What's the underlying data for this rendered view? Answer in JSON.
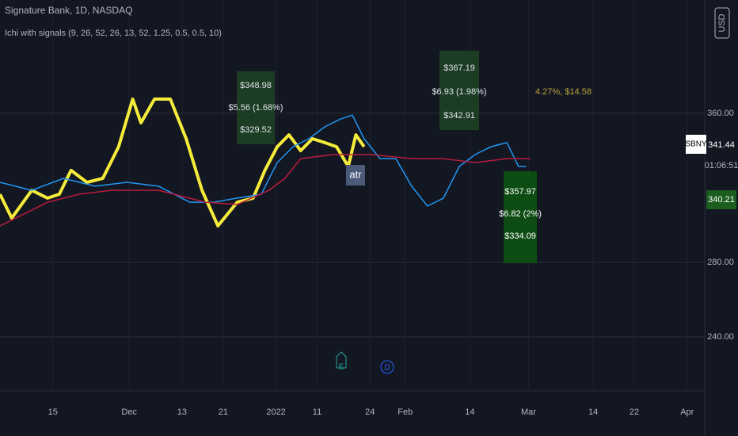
{
  "header": {
    "title": "Signature Bank, 1D, NASDAQ",
    "indicator": "Ichi with signals (9, 26, 52, 26, 13, 52, 1.25, 0.5, 0.5, 10)",
    "currency": "USD"
  },
  "annotations": [
    [
      "$348.98",
      "$5.56 (1.68%)",
      "$329.52"
    ],
    [
      "$367.19",
      "$6.93 (1.98%)",
      "$342.91"
    ],
    [
      "$357.97",
      "$6.82 (2%)",
      "$334.09"
    ],
    "4.27%, $14.58",
    "atr"
  ],
  "events": [
    "E",
    "D"
  ],
  "price_labels": {
    "symbol": "SBNY",
    "last": "341.44",
    "countdown": "01:06:51",
    "level": "340.21"
  },
  "chart_data": {
    "type": "line",
    "xlim": [
      0,
      120
    ],
    "xticks": [
      {
        "value": 9,
        "label": "15"
      },
      {
        "value": 22,
        "label": "Dec"
      },
      {
        "value": 31,
        "label": "13"
      },
      {
        "value": 38,
        "label": "21"
      },
      {
        "value": 47,
        "label": "2022"
      },
      {
        "value": 54,
        "label": "11"
      },
      {
        "value": 63,
        "label": "24"
      },
      {
        "value": 69,
        "label": "Feb"
      },
      {
        "value": 80,
        "label": "14"
      },
      {
        "value": 90,
        "label": "Mar"
      },
      {
        "value": 101,
        "label": "14"
      },
      {
        "value": 108,
        "label": "22"
      },
      {
        "value": 117,
        "label": "Apr"
      }
    ],
    "ylim": [
      212.3,
      420.9
    ],
    "yticks": [
      {
        "value": 240,
        "label": "240.00"
      },
      {
        "value": 280,
        "label": "280.00"
      },
      {
        "value": 360,
        "label": "360.00"
      }
    ],
    "grid": true,
    "series": [
      {
        "color": "#f5eb3b",
        "width": 4,
        "x": [
          0,
          2,
          5.4,
          8.1,
          10.1,
          12.1,
          14.8,
          17.5,
          20.2,
          22.6,
          24,
          26.3,
          29,
          31.7,
          34.4,
          37.1,
          40.4,
          43.1,
          45.1,
          47.2,
          49.2,
          51.2,
          53.2,
          55.3,
          57.3,
          59.3,
          60.6,
          62
        ],
        "values": [
          316.6,
          303.8,
          318.7,
          314.5,
          316.6,
          329.4,
          323,
          325.1,
          342.1,
          367.7,
          354.9,
          367.7,
          367.7,
          346.4,
          318.7,
          299.6,
          312.3,
          314.5,
          329.4,
          342.1,
          348.5,
          340,
          346.4,
          344.3,
          342.1,
          331.5,
          348.5,
          342.1
        ]
      },
      {
        "color": "#2196f3",
        "width": 1.5,
        "x": [
          0,
          5.4,
          10.8,
          16.2,
          21.6,
          27,
          32.3,
          36.4,
          40.4,
          44.5,
          47.2,
          49.9,
          52.6,
          55.3,
          58,
          60,
          62,
          64.7,
          67.4,
          70.1,
          72.8,
          75.5,
          78.2,
          80.9,
          83.6,
          86.3,
          88.3,
          89.6
        ],
        "values": [
          323,
          318.7,
          325.1,
          320.9,
          323,
          320.9,
          312.3,
          312.3,
          314.5,
          316.6,
          333.6,
          342.1,
          346.4,
          352.8,
          357,
          359.1,
          346.4,
          335.7,
          335.7,
          320.9,
          310.2,
          314.5,
          331.5,
          337.9,
          342.1,
          344.3,
          331.5,
          331.5
        ]
      },
      {
        "color": "#b71c3c",
        "width": 1.5,
        "x": [
          0,
          8.1,
          13.5,
          18.9,
          27,
          35,
          40.4,
          45.8,
          48.5,
          51.2,
          56.6,
          63.3,
          70.1,
          75.5,
          80.9,
          86.3,
          90.3
        ],
        "values": [
          299.6,
          312.3,
          316.6,
          318.7,
          318.7,
          312.3,
          311.1,
          318.7,
          325.1,
          335.7,
          337.9,
          337.9,
          335.7,
          335.7,
          333.6,
          335.7,
          335.7
        ]
      }
    ]
  }
}
